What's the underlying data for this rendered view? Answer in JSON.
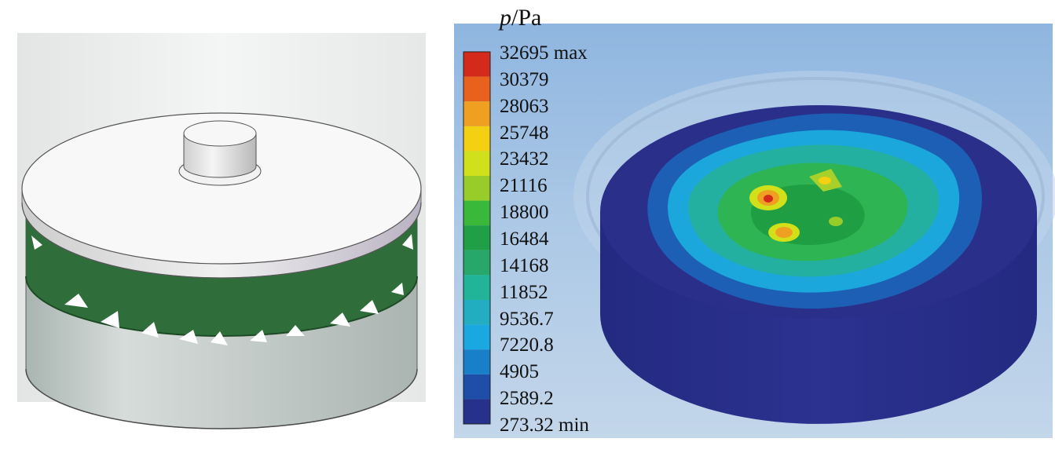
{
  "legend": {
    "title_symbol": "p",
    "title_unit": "/Pa",
    "labels": [
      "32695 max",
      "30379",
      "28063",
      "25748",
      "23432",
      "21116",
      "18800",
      "16484",
      "14168",
      "11852",
      "9536.7",
      "7220.8",
      "4905",
      "2589.2",
      "273.32 min"
    ],
    "colors": [
      "#d42a1c",
      "#e8621e",
      "#f0a020",
      "#f3d012",
      "#d0e01a",
      "#98cc28",
      "#3ab83a",
      "#1fa046",
      "#27a86a",
      "#22b498",
      "#22aec0",
      "#1aa8e0",
      "#1880c8",
      "#1f4ea8",
      "#26318c"
    ]
  },
  "colors": {
    "cavity_background": "#a8c8e8",
    "body_navy": "#2a2f8a",
    "green_band": "#2f6e3a",
    "white_plate": "#f6f6f6",
    "grey_cylinder": "#c4ccca"
  }
}
